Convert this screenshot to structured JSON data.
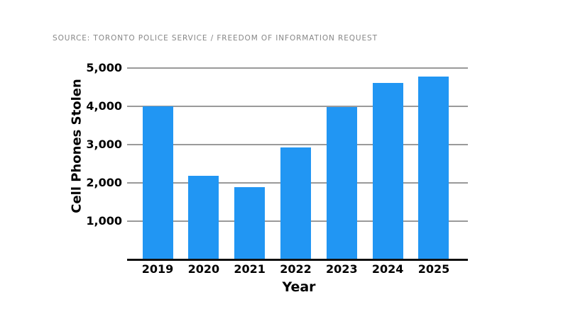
{
  "page": {
    "background": "#ffffff"
  },
  "source_line": "SOURCE: TORONTO POLICE SERVICE / FREEDOM OF INFORMATION REQUEST",
  "chart_data": {
    "type": "bar",
    "title": "",
    "categories": [
      "2019",
      "2020",
      "2021",
      "2022",
      "2023",
      "2024",
      "2025"
    ],
    "values": [
      4000,
      2180,
      1890,
      2930,
      3980,
      4620,
      4780
    ],
    "xlabel": "Year",
    "ylabel": "Cell Phones Stolen",
    "ylim": [
      0,
      5000
    ],
    "ytick_interval": 1000,
    "ytick_labels": [
      "5,000",
      "4,000",
      "3,000",
      "2,000",
      "1,000"
    ],
    "grid": "horizontal",
    "legend": "none",
    "bar_color": "#2196f3",
    "gridline_color": "#9a9a9a",
    "axis_color": "#111111",
    "label_color": "#000000",
    "source_text_color": "#878787"
  }
}
